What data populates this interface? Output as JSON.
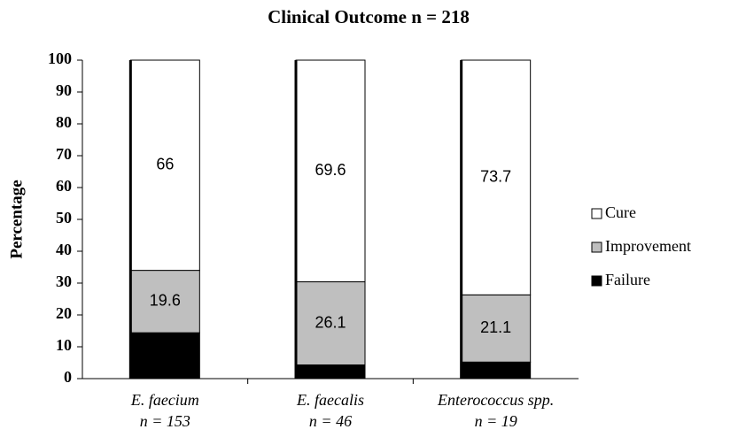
{
  "chart_data": {
    "type": "stacked_bar",
    "title": "Clinical Outcome n = 218",
    "y_label": "Percentage",
    "categories": [
      "E. faecium",
      "E. faecalis",
      "Enterococcus spp."
    ],
    "category_counts": [
      "n = 153",
      "n = 46",
      "n = 19"
    ],
    "series": [
      {
        "name": "Failure",
        "color": "#000000",
        "values": [
          14.4,
          4.3,
          5.2
        ],
        "show_values": false
      },
      {
        "name": "Improvement",
        "color": "#bfbfbf",
        "values": [
          19.6,
          26.1,
          21.1
        ],
        "show_values": true
      },
      {
        "name": "Cure",
        "color": "#ffffff",
        "values": [
          66,
          69.6,
          73.7
        ],
        "show_values": true
      }
    ],
    "ylim": [
      0,
      100
    ],
    "yticks": [
      0,
      10,
      20,
      30,
      40,
      50,
      60,
      70,
      80,
      90,
      100
    ],
    "grid": false,
    "legend": "right"
  }
}
